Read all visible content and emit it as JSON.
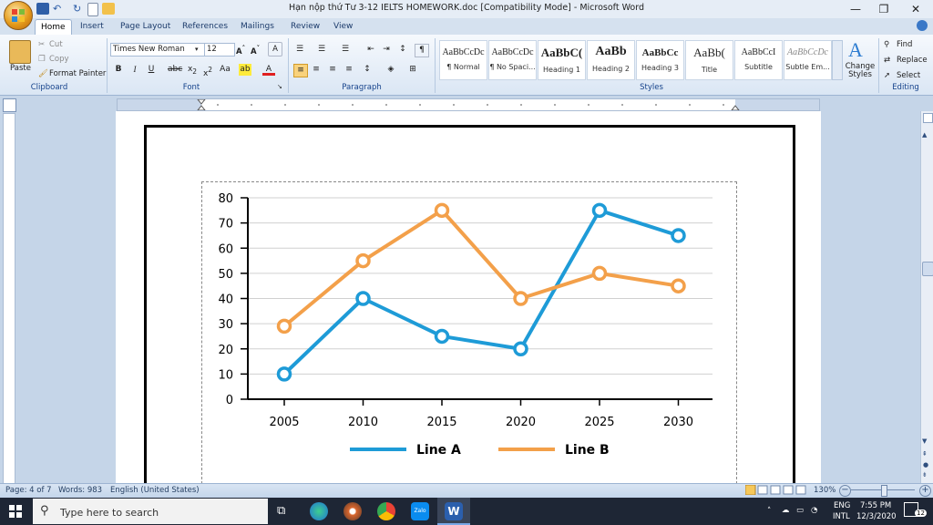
{
  "window": {
    "title": "Hạn nộp thứ Tư 3-12 IELTS HOMEWORK.doc [Compatibility Mode] - Microsoft Word",
    "minimize": "—",
    "restore": "❐",
    "close": "✕"
  },
  "tabs": [
    "Home",
    "Insert",
    "Page Layout",
    "References",
    "Mailings",
    "Review",
    "View"
  ],
  "clipboard": {
    "paste": "Paste",
    "cut": "Cut",
    "copy": "Copy",
    "format_painter": "Format Painter",
    "label": "Clipboard"
  },
  "font": {
    "name": "Times New Roman",
    "size": "12",
    "label": "Font"
  },
  "paragraph": {
    "label": "Paragraph"
  },
  "styles": {
    "label": "Styles",
    "items": [
      {
        "sample": "AaBbCcDc",
        "name": "¶ Normal"
      },
      {
        "sample": "AaBbCcDc",
        "name": "¶ No Spaci..."
      },
      {
        "sample": "AaBbC(",
        "name": "Heading 1"
      },
      {
        "sample": "AaBb",
        "name": "Heading 2"
      },
      {
        "sample": "AaBbCc",
        "name": "Heading 3"
      },
      {
        "sample": "AaBb(",
        "name": "Title"
      },
      {
        "sample": "AaBbCcI",
        "name": "Subtitle"
      },
      {
        "sample": "AaBbCcDc",
        "name": "Subtle Em..."
      }
    ],
    "change_styles": "Change Styles"
  },
  "editing": {
    "find": "Find",
    "replace": "Replace",
    "select": "Select",
    "label": "Editing"
  },
  "status": {
    "page": "Page: 4 of 7",
    "words": "Words: 983",
    "language": "English (United States)",
    "zoom": "130%"
  },
  "taskbar": {
    "search_placeholder": "Type here to search",
    "lang1": "ENG",
    "lang2": "INTL",
    "time": "7:55 PM",
    "date": "12/3/2020",
    "notif_count": "12"
  },
  "colors": {
    "line_a": "#1e9bd7",
    "line_b": "#f3a04a"
  },
  "chart_data": {
    "type": "line",
    "categories": [
      "2005",
      "2010",
      "2015",
      "2020",
      "2025",
      "2030"
    ],
    "series": [
      {
        "name": "Line A",
        "values": [
          10,
          40,
          25,
          20,
          75,
          65
        ]
      },
      {
        "name": "Line B",
        "values": [
          29,
          55,
          75,
          40,
          50,
          45
        ]
      }
    ],
    "ylim": [
      0,
      80
    ],
    "yticks": [
      "0",
      "10",
      "20",
      "30",
      "40",
      "50",
      "60",
      "70",
      "80"
    ],
    "grid": true,
    "legend": "bottom"
  }
}
